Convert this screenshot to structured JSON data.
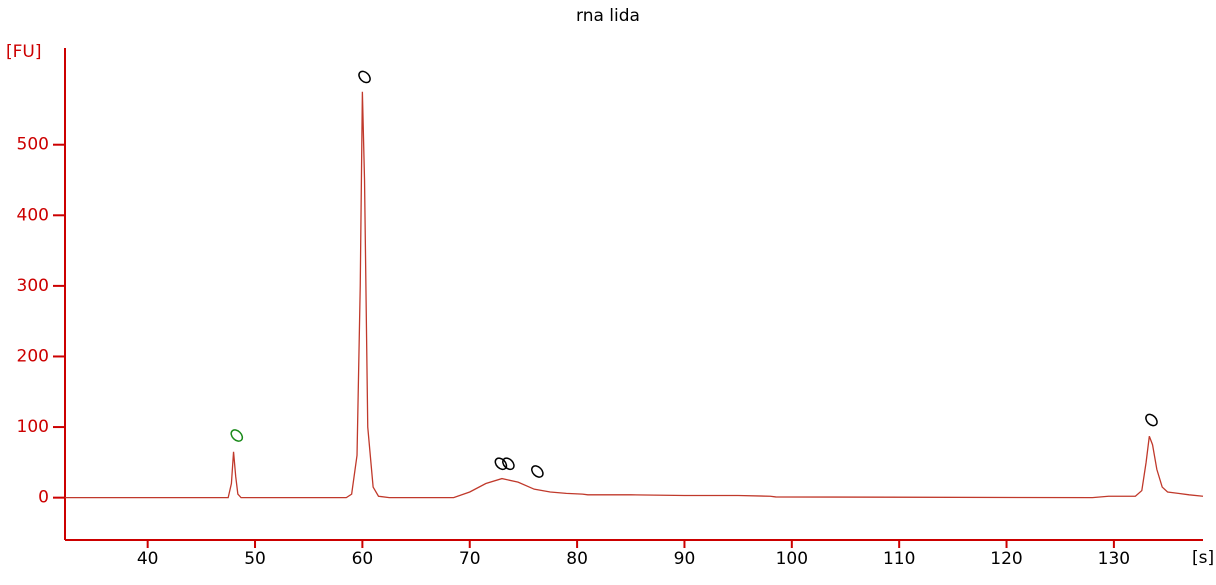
{
  "chart_data": {
    "type": "line",
    "title": "rna lida",
    "y_label": "[FU]",
    "x_label": "[s]",
    "x": [
      32.3,
      47.5,
      47.8,
      48.0,
      48.2,
      48.4,
      48.7,
      58.5,
      59.0,
      59.5,
      59.8,
      60.0,
      60.2,
      60.5,
      61.0,
      61.5,
      62.5,
      68.5,
      70,
      71.5,
      73,
      74.5,
      76,
      77.5,
      79,
      80.5,
      81,
      85,
      90,
      95,
      98,
      98.5,
      128,
      129.5,
      132,
      132.6,
      133,
      133.3,
      133.6,
      134,
      134.5,
      135,
      136,
      137,
      138.3
    ],
    "series": [
      {
        "color": "#c0392b",
        "values": [
          0,
          0,
          20,
          65,
          30,
          5,
          0,
          0,
          5,
          60,
          300,
          575,
          450,
          100,
          15,
          2,
          0,
          0,
          8,
          20,
          27,
          22,
          12,
          8,
          6,
          5,
          4,
          4,
          3,
          3,
          2,
          1,
          0,
          2,
          2,
          10,
          50,
          87,
          75,
          40,
          15,
          8,
          6,
          4,
          2
        ]
      }
    ],
    "markers": {
      "x": [
        48.3,
        60.2,
        72.9,
        73.6,
        76.3,
        133.5
      ],
      "y": [
        88,
        596,
        48,
        48,
        37,
        110
      ],
      "colors": [
        "#1a8a1a",
        "#000000",
        "#000000",
        "#000000",
        "#000000",
        "#000000"
      ]
    },
    "xlim": [
      32.3,
      138.3
    ],
    "ylim": [
      -60,
      637
    ],
    "xticks": [
      40,
      50,
      60,
      70,
      80,
      90,
      100,
      110,
      120,
      130
    ],
    "yticks": [
      0,
      100,
      200,
      300,
      400,
      500
    ],
    "axis_color": "#cc0000"
  }
}
